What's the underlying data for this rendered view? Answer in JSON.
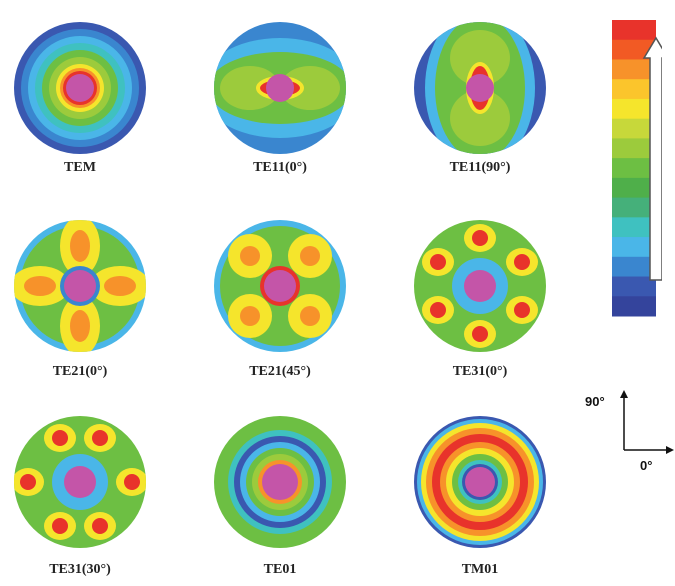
{
  "modes": [
    {
      "id": "tem",
      "label": "TEM"
    },
    {
      "id": "te11-0",
      "label": "TE11(0°)"
    },
    {
      "id": "te11-90",
      "label": "TE11(90°)"
    },
    {
      "id": "te21-0",
      "label": "TE21(0°)"
    },
    {
      "id": "te21-45",
      "label": "TE21(45°)"
    },
    {
      "id": "te31-0",
      "label": "TE31(0°)"
    },
    {
      "id": "te31-30",
      "label": "TE31(30°)"
    },
    {
      "id": "te01",
      "label": "TE01"
    },
    {
      "id": "tm01",
      "label": "TM01"
    }
  ],
  "axes": {
    "y_label": "90°",
    "x_label": "0°"
  },
  "colors": {
    "core": "#c455a8",
    "scale": [
      "#e8332b",
      "#f25a24",
      "#f7922a",
      "#fbc52c",
      "#f5e52c",
      "#c7d83a",
      "#9ccb3c",
      "#6dbf43",
      "#4faf4a",
      "#45b07a",
      "#3fc1c0",
      "#4ab6e8",
      "#3a86cf",
      "#3a58b0",
      "#34449c"
    ]
  }
}
